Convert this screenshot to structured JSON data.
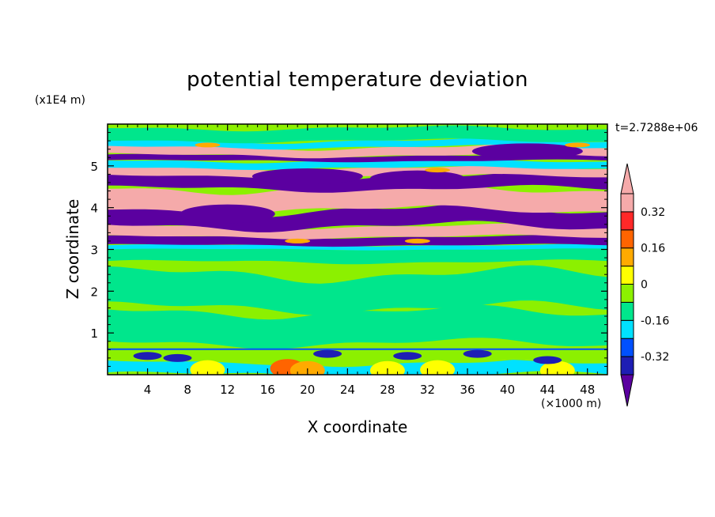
{
  "chart_data": {
    "type": "heatmap",
    "title": "potential temperature deviation",
    "xlabel": "X coordinate",
    "ylabel": "Z coordinate",
    "x_unit_label": "(×1000 m)",
    "y_unit_label": "(x1E4 m)",
    "time_label": "t=2.7288e+06",
    "xlim": [
      0,
      50
    ],
    "ylim": [
      0,
      6
    ],
    "x_ticks": [
      "4",
      "8",
      "12",
      "16",
      "20",
      "24",
      "28",
      "32",
      "36",
      "40",
      "44",
      "48"
    ],
    "y_ticks": [
      "1",
      "2",
      "3",
      "4",
      "5"
    ],
    "colorbar": {
      "levels": [
        -0.4,
        -0.32,
        -0.24,
        -0.16,
        -0.08,
        0,
        0.08,
        0.16,
        0.24,
        0.32,
        0.4
      ],
      "tick_labels": [
        "0.32",
        "0.16",
        "0",
        "-0.16",
        "-0.32"
      ],
      "colors_low_to_high": [
        "#5b00a0",
        "#1e1eb4",
        "#0050ff",
        "#00e1ff",
        "#00e68c",
        "#8cf000",
        "#ffff00",
        "#ffaa00",
        "#ff6400",
        "#ff2828",
        "#f5aaaa"
      ],
      "extend": "both"
    },
    "bands": [
      {
        "z_range": [
          0,
          0.6
        ],
        "pattern": "mixed warm/cool near-surface plumes"
      },
      {
        "z_range": [
          0.6,
          3.0
        ],
        "pattern": "near-zero (green) with patchy positive anomalies"
      },
      {
        "z_range": [
          3.0,
          5.9
        ],
        "pattern": "alternating strong positive (pink) and negative (purple) layers"
      }
    ]
  }
}
